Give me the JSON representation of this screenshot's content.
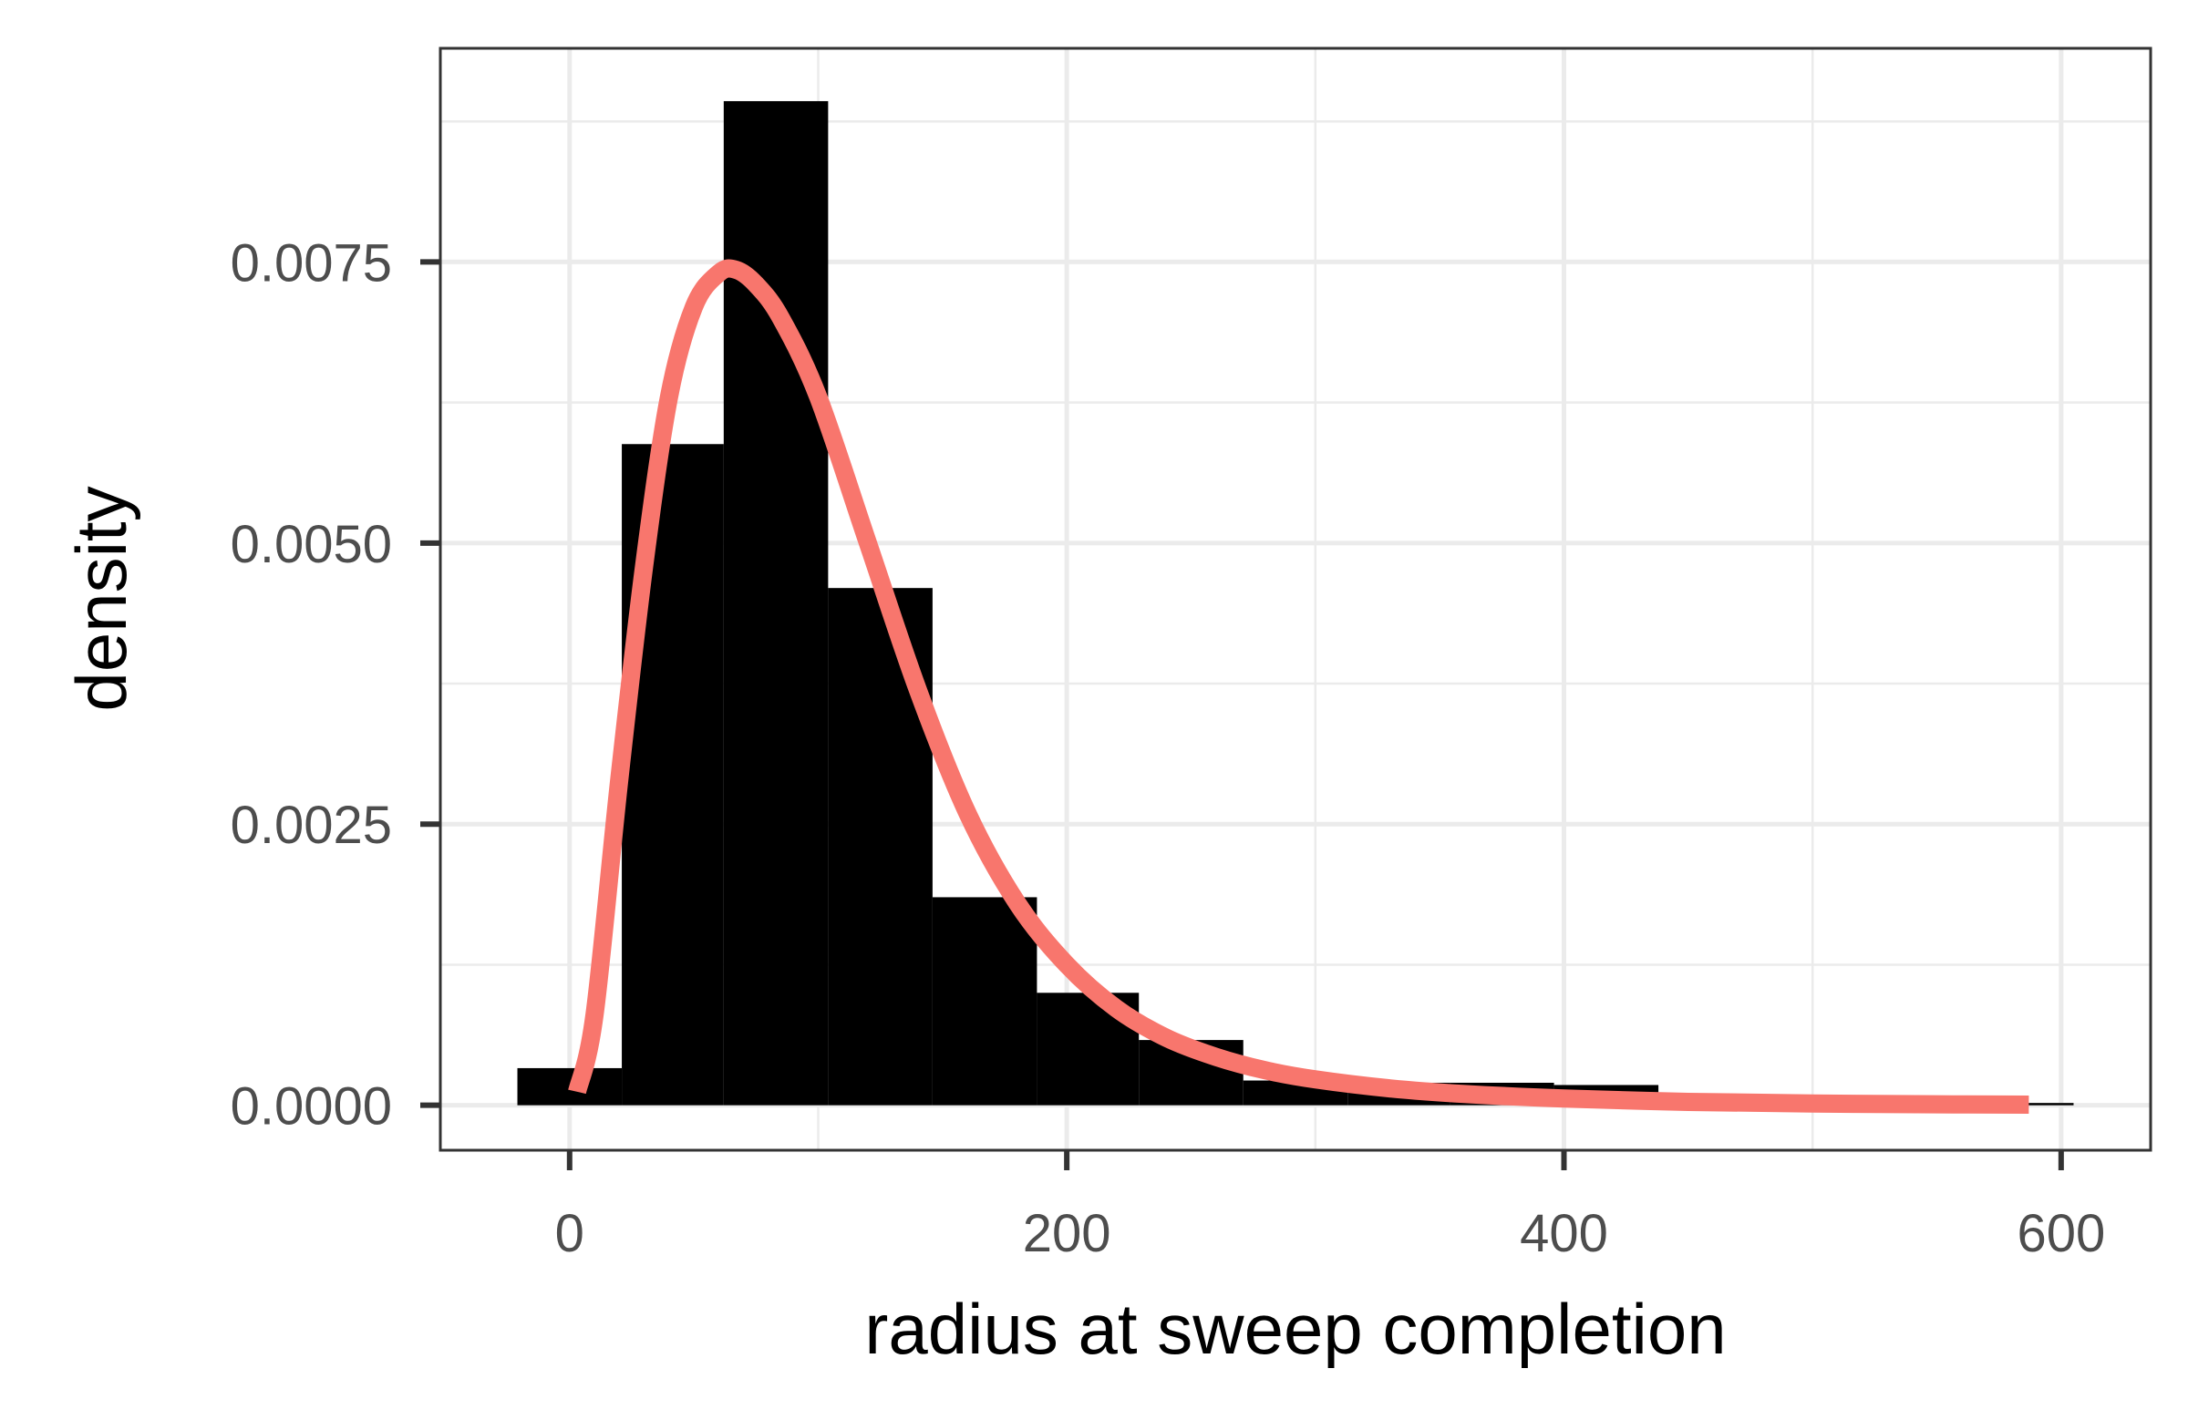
{
  "chart_data": {
    "type": "bar",
    "title": "",
    "xlabel": "radius at sweep completion",
    "ylabel": "density",
    "xlim": [
      -52,
      636
    ],
    "ylim": [
      -0.0004,
      0.0094
    ],
    "x_ticks": [
      0,
      200,
      400,
      600
    ],
    "x_minor_ticks": [
      100,
      300,
      500
    ],
    "y_ticks": [
      0.0,
      0.0025,
      0.005,
      0.0075
    ],
    "y_tick_labels": [
      "0.0000",
      "0.0025",
      "0.0050",
      "0.0075"
    ],
    "y_minor_ticks": [
      0.00125,
      0.00375,
      0.00625,
      0.00875
    ],
    "grid": true,
    "legend": "none",
    "series": [
      {
        "kind": "histogram",
        "bins": [
          {
            "x0": -21,
            "x1": 21,
            "density": 0.00033
          },
          {
            "x0": 21,
            "x1": 62,
            "density": 0.00588
          },
          {
            "x0": 62,
            "x1": 104,
            "density": 0.00893
          },
          {
            "x0": 104,
            "x1": 146,
            "density": 0.0046
          },
          {
            "x0": 146,
            "x1": 188,
            "density": 0.00185
          },
          {
            "x0": 188,
            "x1": 229,
            "density": 0.001
          },
          {
            "x0": 229,
            "x1": 271,
            "density": 0.00058
          },
          {
            "x0": 271,
            "x1": 313,
            "density": 0.00022
          },
          {
            "x0": 313,
            "x1": 354,
            "density": 0.0002
          },
          {
            "x0": 354,
            "x1": 396,
            "density": 0.0002
          },
          {
            "x0": 396,
            "x1": 438,
            "density": 0.00018
          },
          {
            "x0": 438,
            "x1": 480,
            "density": 2e-05
          },
          {
            "x0": 480,
            "x1": 521,
            "density": 2e-05
          },
          {
            "x0": 521,
            "x1": 563,
            "density": 2e-05
          },
          {
            "x0": 563,
            "x1": 605,
            "density": 2e-05
          }
        ]
      },
      {
        "kind": "line",
        "x": [
          3,
          10,
          20,
          30,
          40,
          50,
          60,
          67,
          75,
          85,
          100,
          120,
          140,
          160,
          180,
          200,
          220,
          240,
          260,
          280,
          300,
          330,
          360,
          400,
          450,
          500,
          550,
          587
        ],
        "y": [
          0.00012,
          0.0008,
          0.0029,
          0.0048,
          0.0063,
          0.0071,
          0.0074,
          0.00743,
          0.0073,
          0.007,
          0.0063,
          0.005,
          0.0037,
          0.0026,
          0.0018,
          0.00125,
          0.00086,
          0.0006,
          0.00043,
          0.00031,
          0.00023,
          0.00015,
          0.0001,
          6e-05,
          3e-05,
          1.5e-05,
          8e-06,
          5e-06
        ]
      }
    ],
    "colors": {
      "bars": "#000000",
      "curve": "#F8766D",
      "panel_border": "#333333",
      "grid": "#ebebeb",
      "tick_marks": "#333333"
    }
  }
}
